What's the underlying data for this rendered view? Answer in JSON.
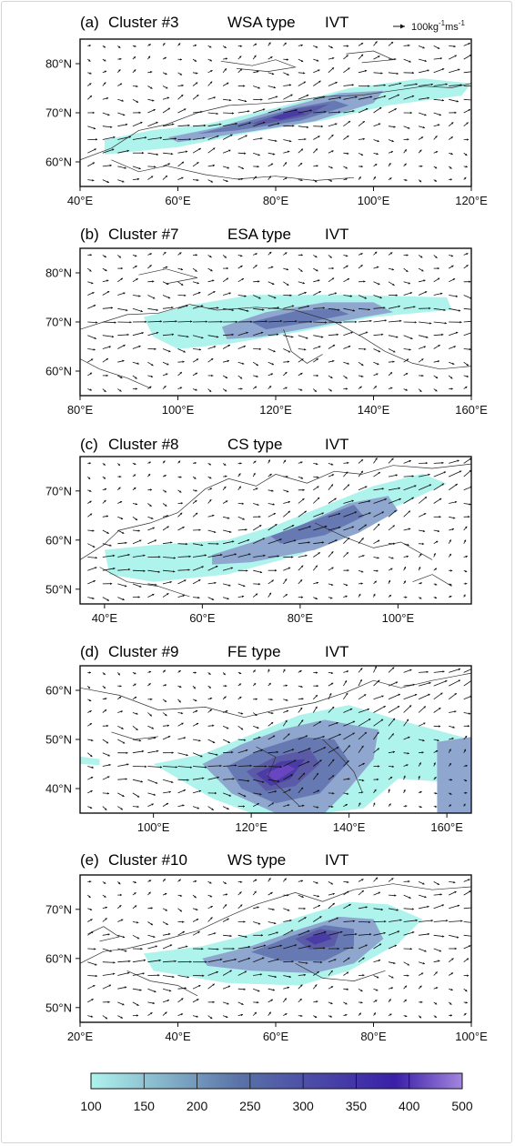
{
  "figure": {
    "variable": "IVT",
    "reference_vector_label": {
      "value": "100kg",
      "exp1": "-1",
      "mid": "ms",
      "exp2": "-1"
    }
  },
  "chart_data": [
    {
      "type": "heatmap",
      "label": "(a)",
      "cluster": "Cluster #3",
      "type_name": "WSA type",
      "variable": "IVT",
      "xlim": [
        40,
        120
      ],
      "ylim": [
        55,
        85
      ],
      "x_ticks": [
        40,
        60,
        80,
        100,
        120
      ],
      "x_tick_labels": [
        "40°E",
        "60°E",
        "80°E",
        "100°E",
        "120°E"
      ],
      "y_ticks": [
        60,
        70,
        80
      ],
      "y_tick_labels": [
        "60°N",
        "70°N",
        "80°N"
      ],
      "shading": [
        {
          "level": 100,
          "polygon": [
            [
              45,
              64.5
            ],
            [
              55,
              66.5
            ],
            [
              65,
              67.5
            ],
            [
              80,
              71
            ],
            [
              95,
              75
            ],
            [
              110,
              77
            ],
            [
              120,
              76
            ],
            [
              118,
              73.5
            ],
            [
              103,
              71.5
            ],
            [
              90,
              68.5
            ],
            [
              75,
              66
            ],
            [
              60,
              63
            ],
            [
              45,
              61.5
            ]
          ]
        },
        {
          "level": 150,
          "polygon": [
            [
              58,
              65
            ],
            [
              68,
              67
            ],
            [
              80,
              70.5
            ],
            [
              93,
              74
            ],
            [
              102,
              74.5
            ],
            [
              100,
              72
            ],
            [
              88,
              68.3
            ],
            [
              75,
              66.2
            ],
            [
              60,
              64
            ]
          ]
        },
        {
          "level": 200,
          "polygon": [
            [
              64,
              65.7
            ],
            [
              74,
              68.2
            ],
            [
              84,
              71
            ],
            [
              92,
              72.5
            ],
            [
              95,
              71.5
            ],
            [
              85,
              68.4
            ],
            [
              72,
              66.4
            ]
          ]
        },
        {
          "level": 250,
          "polygon": [
            [
              75,
              67.8
            ],
            [
              84,
              70.8
            ],
            [
              91,
              71.8
            ],
            [
              86,
              69.3
            ],
            [
              77,
              67.6
            ]
          ]
        },
        {
          "level": 300,
          "polygon": [
            [
              79,
              69
            ],
            [
              84,
              70.6
            ],
            [
              86,
              69.8
            ],
            [
              81,
              68.6
            ]
          ]
        }
      ],
      "flow_axis": [
        [
          45,
          63.5
        ],
        [
          60,
          65.5
        ],
        [
          75,
          68.5
        ],
        [
          90,
          71.5
        ],
        [
          105,
          75
        ],
        [
          118,
          76.5
        ]
      ]
    },
    {
      "type": "heatmap",
      "label": "(b)",
      "cluster": "Cluster #7",
      "type_name": "ESA type",
      "variable": "IVT",
      "xlim": [
        80,
        160
      ],
      "ylim": [
        55,
        85
      ],
      "x_ticks": [
        80,
        100,
        120,
        140,
        160
      ],
      "x_tick_labels": [
        "80°E",
        "100°E",
        "120°E",
        "140°E",
        "160°E"
      ],
      "y_ticks": [
        60,
        70,
        80
      ],
      "y_tick_labels": [
        "60°N",
        "70°N",
        "80°N"
      ],
      "shading": [
        {
          "level": 100,
          "polygon": [
            [
              93,
              71
            ],
            [
              103,
              73.5
            ],
            [
              115,
              75.5
            ],
            [
              135,
              75.5
            ],
            [
              155,
              75
            ],
            [
              156,
              72.5
            ],
            [
              140,
              71
            ],
            [
              125,
              68
            ],
            [
              110,
              65.5
            ],
            [
              100,
              64.5
            ],
            [
              95,
              67
            ]
          ]
        },
        {
          "level": 150,
          "polygon": [
            [
              109,
              69
            ],
            [
              118,
              72
            ],
            [
              130,
              74
            ],
            [
              140,
              74
            ],
            [
              144,
              72
            ],
            [
              138,
              71
            ],
            [
              128,
              69
            ],
            [
              117,
              67
            ],
            [
              110,
              66.5
            ]
          ]
        },
        {
          "level": 200,
          "polygon": [
            [
              115,
              70
            ],
            [
              124,
              72.2
            ],
            [
              132,
              72.8
            ],
            [
              135,
              71.6
            ],
            [
              126,
              69.8
            ],
            [
              118,
              68.5
            ]
          ]
        }
      ],
      "flow_axis": [
        [
          85,
          69.5
        ],
        [
          105,
          70
        ],
        [
          125,
          70.5
        ],
        [
          145,
          71
        ],
        [
          158,
          71
        ]
      ]
    },
    {
      "type": "heatmap",
      "label": "(c)",
      "cluster": "Cluster #8",
      "type_name": "CS type",
      "variable": "IVT",
      "xlim": [
        35,
        115
      ],
      "ylim": [
        47,
        77
      ],
      "x_ticks": [
        40,
        60,
        80,
        100
      ],
      "x_tick_labels": [
        "40°E",
        "60°E",
        "80°E",
        "100°E"
      ],
      "y_ticks": [
        50,
        60,
        70
      ],
      "y_tick_labels": [
        "50°N",
        "60°N",
        "70°N"
      ],
      "shading": [
        {
          "level": 100,
          "polygon": [
            [
              40,
              58
            ],
            [
              50,
              59
            ],
            [
              65,
              60
            ],
            [
              75,
              63
            ],
            [
              85,
              67
            ],
            [
              95,
              71
            ],
            [
              105,
              73.5
            ],
            [
              110,
              71.5
            ],
            [
              100,
              67
            ],
            [
              90,
              61.5
            ],
            [
              80,
              57
            ],
            [
              65,
              53
            ],
            [
              50,
              51.5
            ],
            [
              41,
              53
            ]
          ]
        },
        {
          "level": 150,
          "polygon": [
            [
              62,
              57
            ],
            [
              70,
              59.5
            ],
            [
              80,
              63
            ],
            [
              90,
              67.5
            ],
            [
              98,
              69
            ],
            [
              100,
              66
            ],
            [
              92,
              61.5
            ],
            [
              83,
              58
            ],
            [
              70,
              55.5
            ],
            [
              62,
              55
            ]
          ]
        },
        {
          "level": 200,
          "polygon": [
            [
              74,
              60.8
            ],
            [
              84,
              64.5
            ],
            [
              91,
              67.2
            ],
            [
              93,
              64.8
            ],
            [
              85,
              61
            ],
            [
              76,
              59.3
            ]
          ]
        }
      ],
      "flow_axis": [
        [
          40,
          55
        ],
        [
          55,
          55.5
        ],
        [
          70,
          58
        ],
        [
          85,
          63
        ],
        [
          100,
          69
        ],
        [
          110,
          73
        ]
      ]
    },
    {
      "type": "heatmap",
      "label": "(d)",
      "cluster": "Cluster #9",
      "type_name": "FE type",
      "variable": "IVT",
      "xlim": [
        85,
        165
      ],
      "ylim": [
        35,
        65
      ],
      "x_ticks": [
        100,
        120,
        140,
        160
      ],
      "x_tick_labels": [
        "100°E",
        "120°E",
        "140°E",
        "160°E"
      ],
      "y_ticks": [
        40,
        50,
        60
      ],
      "y_tick_labels": [
        "40°N",
        "50°N",
        "60°N"
      ],
      "shading": [
        {
          "level": 100,
          "polygon": [
            [
              100,
              45
            ],
            [
              110,
              47
            ],
            [
              120,
              51
            ],
            [
              130,
              55
            ],
            [
              140,
              57
            ],
            [
              150,
              54
            ],
            [
              165,
              50
            ],
            [
              165,
              41
            ],
            [
              150,
              42
            ],
            [
              143,
              36
            ],
            [
              135,
              35
            ],
            [
              120,
              35
            ],
            [
              112,
              38
            ]
          ]
        },
        {
          "level": 100,
          "polygon": [
            [
              85,
              46.5
            ],
            [
              89,
              46
            ],
            [
              89,
              44.8
            ],
            [
              85,
              45
            ]
          ]
        },
        {
          "level": 150,
          "polygon": [
            [
              110,
              45
            ],
            [
              118,
              49
            ],
            [
              126,
              52
            ],
            [
              135,
              54
            ],
            [
              146,
              52
            ],
            [
              145,
              46
            ],
            [
              140,
              40
            ],
            [
              135,
              35
            ],
            [
              125,
              35
            ],
            [
              116,
              39
            ]
          ]
        },
        {
          "level": 150,
          "polygon": [
            [
              158,
              49.5
            ],
            [
              165,
              50.5
            ],
            [
              165,
              35
            ],
            [
              158,
              35
            ]
          ]
        },
        {
          "level": 200,
          "polygon": [
            [
              115,
              44.5
            ],
            [
              122,
              48
            ],
            [
              130,
              50.5
            ],
            [
              137,
              50
            ],
            [
              140,
              45.5
            ],
            [
              134,
              39
            ],
            [
              125,
              37
            ],
            [
              118,
              40
            ]
          ]
        },
        {
          "level": 250,
          "polygon": [
            [
              119,
              43.5
            ],
            [
              125,
              46.5
            ],
            [
              132,
              48
            ],
            [
              134,
              45
            ],
            [
              129,
              40.5
            ],
            [
              123,
              39.5
            ]
          ]
        },
        {
          "level": 300,
          "polygon": [
            [
              121,
              43
            ],
            [
              126,
              45.5
            ],
            [
              131,
              46
            ],
            [
              128,
              42
            ],
            [
              124,
              40.5
            ]
          ]
        },
        {
          "level": 350,
          "polygon": [
            [
              123,
              43
            ],
            [
              127,
              45
            ],
            [
              129,
              44
            ],
            [
              125,
              41.5
            ]
          ]
        }
      ],
      "flow_axis": [
        [
          95,
          45
        ],
        [
          110,
          44
        ],
        [
          125,
          44
        ],
        [
          137,
          50
        ],
        [
          150,
          58
        ],
        [
          163,
          63
        ]
      ]
    },
    {
      "type": "heatmap",
      "label": "(e)",
      "cluster": "Cluster #10",
      "type_name": "WS type",
      "variable": "IVT",
      "xlim": [
        20,
        100
      ],
      "ylim": [
        47,
        77
      ],
      "x_ticks": [
        20,
        40,
        60,
        80,
        100
      ],
      "x_tick_labels": [
        "20°E",
        "40°E",
        "60°E",
        "80°E",
        "100°E"
      ],
      "y_ticks": [
        50,
        60,
        70
      ],
      "y_tick_labels": [
        "50°N",
        "60°N",
        "70°N"
      ],
      "shading": [
        {
          "level": 100,
          "polygon": [
            [
              33,
              61
            ],
            [
              45,
              62.5
            ],
            [
              55,
              65
            ],
            [
              65,
              68.5
            ],
            [
              75,
              71.5
            ],
            [
              83,
              71
            ],
            [
              90,
              68
            ],
            [
              85,
              63
            ],
            [
              75,
              57.5
            ],
            [
              65,
              54.5
            ],
            [
              50,
              55
            ],
            [
              35,
              57.5
            ]
          ]
        },
        {
          "level": 150,
          "polygon": [
            [
              45,
              60
            ],
            [
              55,
              62.5
            ],
            [
              65,
              66
            ],
            [
              73,
              68.5
            ],
            [
              80,
              68
            ],
            [
              82,
              64
            ],
            [
              76,
              59
            ],
            [
              68,
              57
            ],
            [
              55,
              57.5
            ],
            [
              46,
              58.5
            ]
          ]
        },
        {
          "level": 200,
          "polygon": [
            [
              55,
              61.3
            ],
            [
              63,
              64.5
            ],
            [
              70,
              66.8
            ],
            [
              76,
              66
            ],
            [
              76,
              62.5
            ],
            [
              70,
              59.5
            ],
            [
              61,
              59.5
            ]
          ]
        },
        {
          "level": 250,
          "polygon": [
            [
              64,
              64
            ],
            [
              69,
              66
            ],
            [
              73,
              65.5
            ],
            [
              72,
              62.5
            ],
            [
              67,
              61.8
            ]
          ]
        },
        {
          "level": 300,
          "polygon": [
            [
              66,
              64
            ],
            [
              70,
              65.4
            ],
            [
              71.5,
              64
            ],
            [
              68,
              62.8
            ]
          ]
        }
      ],
      "flow_axis": [
        [
          25,
          58
        ],
        [
          45,
          59
        ],
        [
          60,
          62
        ],
        [
          72,
          65
        ],
        [
          85,
          67
        ],
        [
          97,
          68
        ]
      ]
    }
  ],
  "colorbar": {
    "ticks": [
      100,
      150,
      200,
      250,
      300,
      350,
      400,
      500
    ],
    "tick_labels": [
      "100",
      "150",
      "200",
      "250",
      "300",
      "350",
      "400",
      "500"
    ],
    "color_min": "#aef3ec",
    "color_mid": "#5a72a8",
    "color_dark": "#3a1fa8",
    "color_max": "#a385e0"
  },
  "level_colors": {
    "100": "#aef3ec",
    "150": "#8fa6cf",
    "200": "#6779b3",
    "250": "#5b5aa6",
    "300": "#4a3ca5",
    "350": "#6a45c0"
  }
}
